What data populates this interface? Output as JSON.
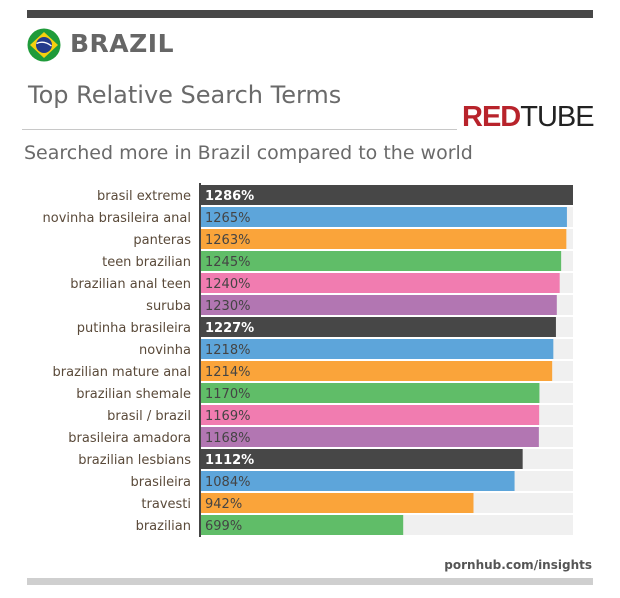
{
  "header": {
    "country": "BRAZIL",
    "title": "Top Relative Search Terms",
    "subtitle": "Searched more in Brazil compared to the world",
    "logo_text": "REDTUBE",
    "logo_red": "RED",
    "logo_dark": "TUBE"
  },
  "footer": {
    "source": "pornhub.com/insights"
  },
  "colors": {
    "track": "#f0f0f0",
    "axis": "#444444",
    "palette": [
      "#474747",
      "#5da5da",
      "#faa43a",
      "#60bd68",
      "#f17cb0",
      "#b276b2"
    ]
  },
  "chart_data": {
    "type": "bar",
    "orientation": "horizontal",
    "categories": [
      "brasil extreme",
      "novinha brasileira anal",
      "panteras",
      "teen brazilian",
      "brazilian anal teen",
      "suruba",
      "putinha brasileira",
      "novinha",
      "brazilian mature anal",
      "brazilian shemale",
      "brasil / brazil",
      "brasileira amadora",
      "brazilian lesbians",
      "brasileira",
      "travesti",
      "brazilian"
    ],
    "values": [
      1286,
      1265,
      1263,
      1245,
      1240,
      1230,
      1227,
      1218,
      1214,
      1170,
      1169,
      1168,
      1112,
      1084,
      942,
      699
    ],
    "labels": [
      "1286%",
      "1265%",
      "1263%",
      "1245%",
      "1240%",
      "1230%",
      "1227%",
      "1218%",
      "1214%",
      "1170%",
      "1169%",
      "1168%",
      "1112%",
      "1084%",
      "942%",
      "699%"
    ],
    "unit": "%",
    "xlim": [
      0,
      1286
    ],
    "grid": false,
    "legend": "none"
  }
}
